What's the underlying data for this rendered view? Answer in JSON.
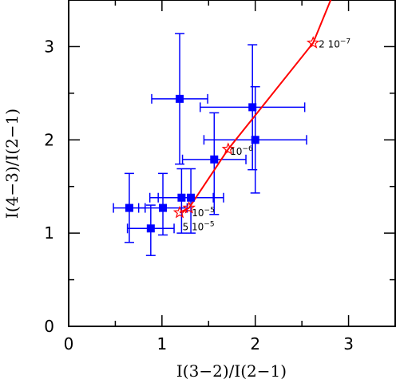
{
  "chart_data": {
    "type": "scatter",
    "xlabel": "I(3−2)/I(2−1)",
    "ylabel": "I(4−3)/I(2−1)",
    "xlim": [
      0,
      3.5
    ],
    "ylim": [
      0,
      3.5
    ],
    "x_ticks": [
      0,
      1,
      2,
      3
    ],
    "y_ticks": [
      0,
      1,
      2,
      3
    ],
    "grid": false,
    "series": [
      {
        "marker": "square",
        "color": "#0000ff",
        "points": [
          {
            "x": 0.65,
            "y": 1.27,
            "xerr": 0.17,
            "yerr_low": 0.37,
            "yerr_high": 0.37
          },
          {
            "x": 0.88,
            "y": 1.05,
            "xerr": 0.25,
            "yerr_low": 0.29,
            "yerr_high": 0.25
          },
          {
            "x": 1.01,
            "y": 1.27,
            "xerr": 0.26,
            "yerr_low": 0.29,
            "yerr_high": 0.37
          },
          {
            "x": 1.19,
            "y": 2.44,
            "xerr": 0.3,
            "yerr_low": 0.7,
            "yerr_high": 0.7
          },
          {
            "x": 1.21,
            "y": 1.38,
            "xerr": 0.34,
            "yerr_low": 0.38,
            "yerr_high": 0.31
          },
          {
            "x": 1.31,
            "y": 1.38,
            "xerr": 0.35,
            "yerr_low": 0.38,
            "yerr_high": 0.31
          },
          {
            "x": 1.56,
            "y": 1.79,
            "xerr": 0.34,
            "yerr_low": 0.59,
            "yerr_high": 0.5
          },
          {
            "x": 1.97,
            "y": 2.35,
            "xerr": 0.56,
            "yerr_low": 0.67,
            "yerr_high": 0.67
          },
          {
            "x": 2.0,
            "y": 2.0,
            "xerr": 0.55,
            "yerr_low": 0.57,
            "yerr_high": 0.57
          }
        ]
      },
      {
        "type": "line",
        "color": "#ff0000",
        "marker": "star",
        "points": [
          {
            "x": 1.19,
            "y": 1.22
          },
          {
            "x": 1.29,
            "y": 1.27
          },
          {
            "x": 1.71,
            "y": 1.9
          },
          {
            "x": 2.62,
            "y": 3.04
          },
          {
            "x": 2.85,
            "y": 3.6
          }
        ],
        "starred_points": [
          0,
          1,
          2,
          3
        ]
      }
    ],
    "annotations": [
      {
        "base": "5 10",
        "exp": "−5",
        "x": 1.22,
        "y": 1.03
      },
      {
        "base": "10",
        "exp": "−5",
        "x": 1.32,
        "y": 1.18
      },
      {
        "base": "10",
        "exp": "−6",
        "x": 1.73,
        "y": 1.84
      },
      {
        "base": "2 10",
        "exp": "−7",
        "x": 2.68,
        "y": 2.99
      }
    ]
  }
}
